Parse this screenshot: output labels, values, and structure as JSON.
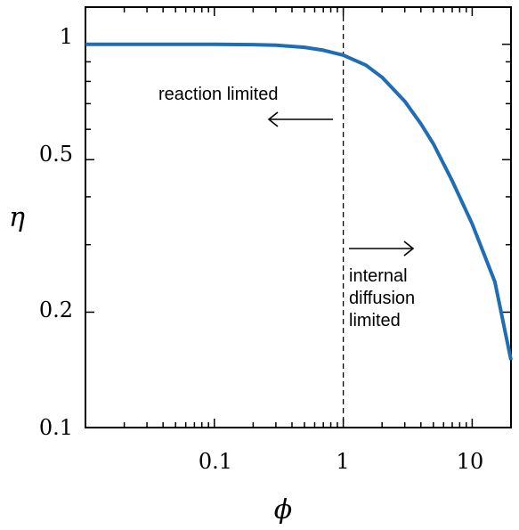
{
  "chart_data": {
    "type": "line",
    "title": "",
    "xlabel": "ϕ",
    "ylabel": "η",
    "xscale": "log",
    "yscale": "log",
    "xlim": [
      0.01,
      20
    ],
    "ylim": [
      0.1,
      1.25
    ],
    "xticks": [
      {
        "value": 0.1,
        "label": "0.1"
      },
      {
        "value": 1,
        "label": "1"
      },
      {
        "value": 10,
        "label": "10"
      }
    ],
    "yticks": [
      {
        "value": 0.1,
        "label": "0.1"
      },
      {
        "value": 0.2,
        "label": "0.2"
      },
      {
        "value": 0.5,
        "label": "0.5"
      },
      {
        "value": 1,
        "label": "1"
      }
    ],
    "grid": false,
    "series": [
      {
        "color": "#1f6db5",
        "x": [
          0.01,
          0.05,
          0.1,
          0.2,
          0.3,
          0.5,
          0.7,
          1,
          1.5,
          2,
          3,
          4,
          5,
          7,
          10,
          15,
          20
        ],
        "y": [
          1.0,
          1.0,
          1.0,
          0.998,
          0.994,
          0.982,
          0.965,
          0.937,
          0.882,
          0.82,
          0.71,
          0.62,
          0.55,
          0.44,
          0.34,
          0.24,
          0.15
        ]
      }
    ],
    "reference_line": {
      "axis": "x",
      "value": 1,
      "style": "dashed"
    },
    "annotations": [
      {
        "text": "reaction limited",
        "arrow": "left"
      },
      {
        "text": "internal",
        "arrow": "right"
      },
      {
        "text": "diffusion"
      },
      {
        "text": "limited"
      }
    ]
  }
}
